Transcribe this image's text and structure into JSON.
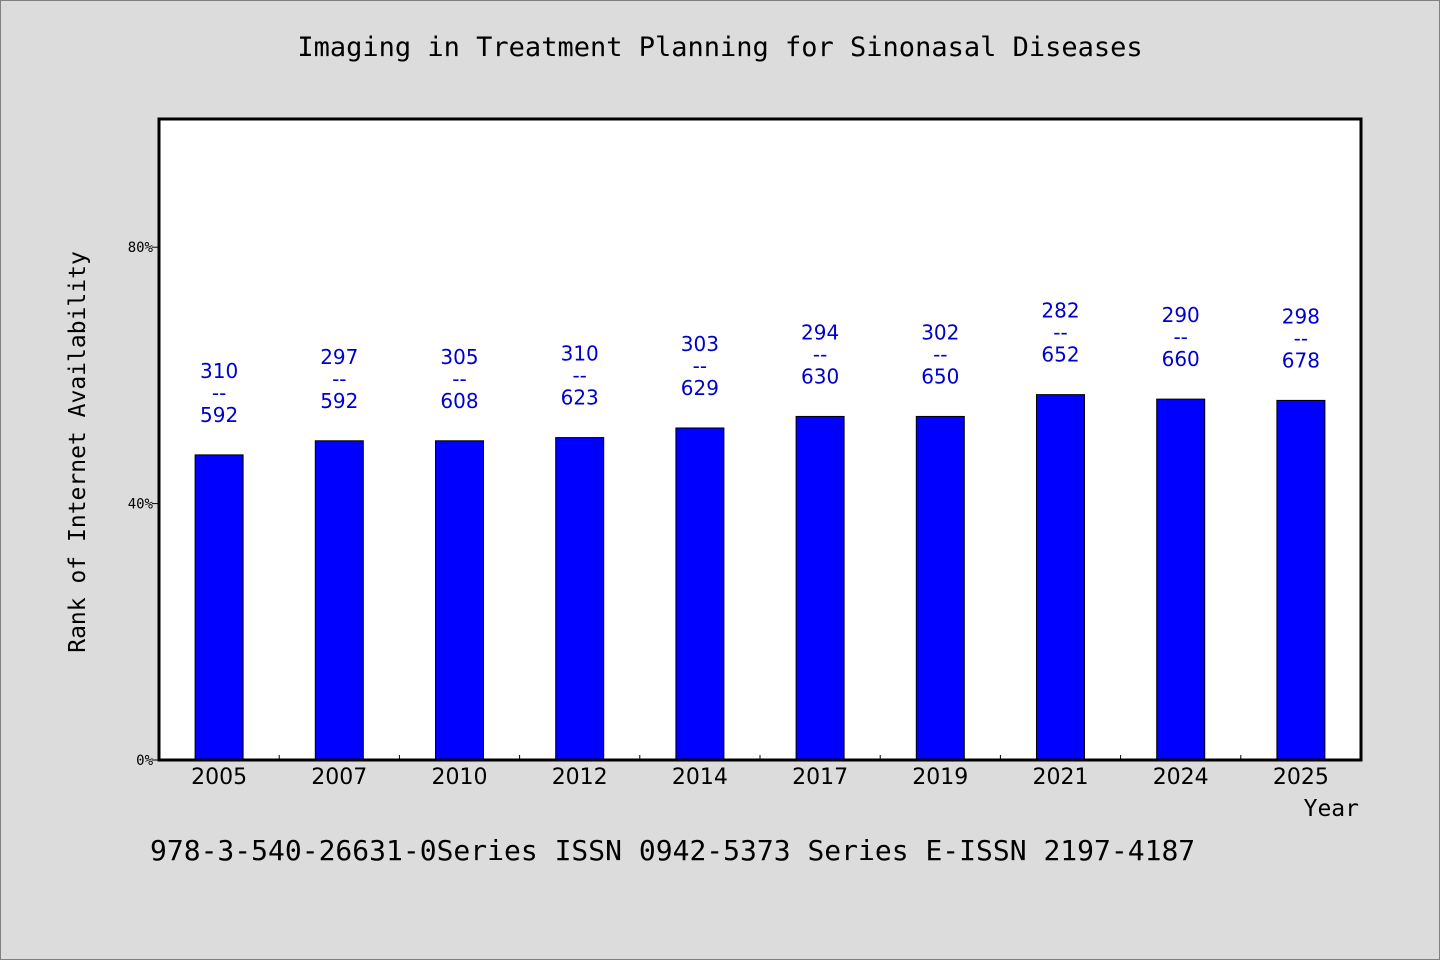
{
  "chart_data": {
    "type": "bar",
    "title": "Imaging in Treatment Planning for Sinonasal Diseases",
    "xlabel": "Year",
    "ylabel": "Rank of Internet Availability",
    "categories": [
      "2005",
      "2007",
      "2010",
      "2012",
      "2014",
      "2017",
      "2019",
      "2021",
      "2024",
      "2025"
    ],
    "series": [
      {
        "values": [
          47.6,
          49.8,
          49.8,
          50.3,
          51.8,
          53.6,
          53.6,
          57.0,
          56.3,
          56.1
        ]
      }
    ],
    "data_labels": [
      [
        "310",
        "--",
        "592"
      ],
      [
        "297",
        "--",
        "592"
      ],
      [
        "305",
        "--",
        "608"
      ],
      [
        "310",
        "--",
        "623"
      ],
      [
        "303",
        "--",
        "629"
      ],
      [
        "294",
        "--",
        "630"
      ],
      [
        "302",
        "--",
        "650"
      ],
      [
        "282",
        "--",
        "652"
      ],
      [
        "290",
        "--",
        "660"
      ],
      [
        "298",
        "--",
        "678"
      ]
    ],
    "y_ticks": [
      0,
      40,
      80
    ],
    "y_tick_labels": [
      "0%",
      "40%",
      "80%"
    ],
    "ylim": [
      0,
      100
    ],
    "grid": false,
    "legend": "none",
    "colors": {
      "bar": "#0000ff",
      "label": "#0000cc",
      "background": "#dcdcdc",
      "plot_background": "#ffffff"
    }
  },
  "footer": {
    "text": "978-3-540-26631-0Series ISSN 0942-5373 Series E-ISSN 2197-4187"
  }
}
